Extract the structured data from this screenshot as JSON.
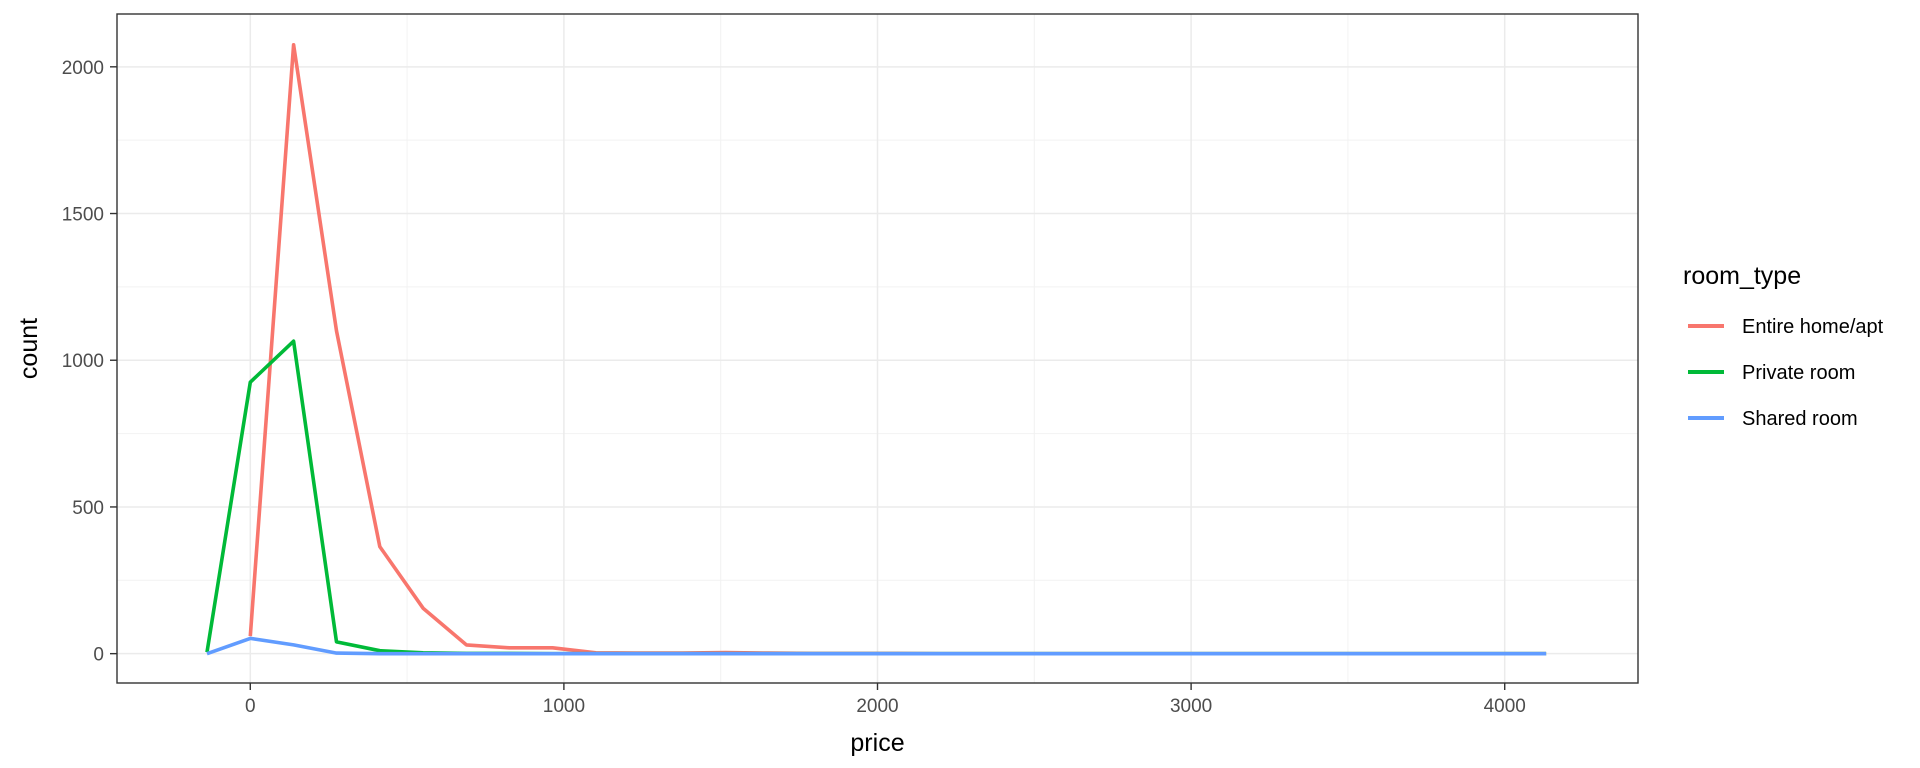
{
  "chart_data": {
    "type": "line",
    "title": "",
    "xlabel": "price",
    "ylabel": "count",
    "xlim": [
      -425,
      4425
    ],
    "ylim": [
      -100,
      2180
    ],
    "x_ticks": [
      0,
      1000,
      2000,
      3000,
      4000
    ],
    "y_ticks": [
      0,
      500,
      1000,
      1500,
      2000
    ],
    "grid": true,
    "legend": {
      "title": "room_type",
      "position": "right"
    },
    "series": [
      {
        "name": "Entire home/apt",
        "color": "#F8766D",
        "x": [
          0,
          138,
          275,
          413,
          551,
          689,
          826,
          964,
          1102,
          1240,
          1377,
          1515,
          1653,
          1791,
          1928,
          2066,
          2204,
          2342,
          2479,
          2617,
          2755,
          2893,
          3030,
          3168,
          3306,
          3444,
          3581,
          3719,
          3857,
          3995,
          4132
        ],
        "y": [
          60,
          2075,
          1100,
          365,
          155,
          30,
          20,
          20,
          3,
          2,
          2,
          4,
          2,
          1,
          1,
          1,
          0,
          0,
          0,
          0,
          0,
          0,
          0,
          0,
          0,
          0,
          0,
          0,
          0,
          0,
          0
        ]
      },
      {
        "name": "Private room",
        "color": "#00BA38",
        "x": [
          -138,
          0,
          138,
          275,
          413,
          551,
          689,
          826,
          964,
          1102,
          1240,
          1377,
          1515,
          1653,
          1791,
          1928,
          2066,
          2204,
          2342,
          2479,
          2617,
          2755,
          2893,
          3030,
          3168,
          3306,
          3444,
          3581,
          3719,
          3857,
          3995,
          4132
        ],
        "y": [
          5,
          925,
          1065,
          40,
          10,
          3,
          1,
          1,
          0,
          0,
          0,
          0,
          0,
          0,
          0,
          0,
          0,
          0,
          0,
          0,
          0,
          0,
          0,
          0,
          0,
          0,
          0,
          0,
          0,
          0,
          0,
          0
        ]
      },
      {
        "name": "Shared room",
        "color": "#619CFF",
        "x": [
          -138,
          0,
          138,
          275,
          413,
          551,
          689,
          826,
          964,
          1102,
          1240,
          1377,
          1515,
          1653,
          1791,
          1928,
          2066,
          2204,
          2342,
          2479,
          2617,
          2755,
          2893,
          3030,
          3168,
          3306,
          3444,
          3581,
          3719,
          3857,
          3995,
          4132
        ],
        "y": [
          0,
          52,
          30,
          2,
          0,
          0,
          0,
          0,
          0,
          0,
          0,
          0,
          0,
          0,
          0,
          0,
          0,
          0,
          0,
          0,
          0,
          0,
          0,
          0,
          0,
          0,
          0,
          0,
          0,
          0,
          0,
          0
        ]
      }
    ]
  }
}
